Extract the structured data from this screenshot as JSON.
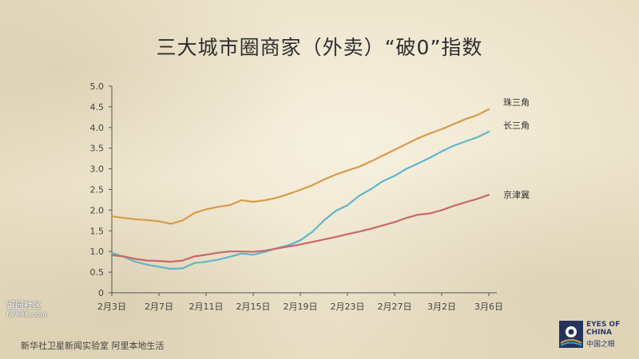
{
  "title": "三大城市圈商家（外卖）“破0”指数",
  "source": "新华社卫星新闻实验室  阿里本地生活",
  "watermark": {
    "text": "留园社区",
    "url": "6PARK.com"
  },
  "logo": {
    "line1": "EYES OF",
    "line2": "CHINA",
    "cn": "中国之眼"
  },
  "colors": {
    "zhu": "#d79b4b",
    "chang": "#5fb7c9",
    "jing": "#c96868"
  },
  "chart_data": {
    "type": "line",
    "title": "三大城市圈商家（外卖）“破0”指数",
    "xlabel": "",
    "ylabel": "",
    "ylim": [
      0,
      5.0
    ],
    "yticks": [
      "0",
      "0.5",
      "1.0",
      "1.5",
      "2.0",
      "2.5",
      "3.0",
      "3.5",
      "4.0",
      "4.5",
      "5.0"
    ],
    "xticks": [
      "2月3日",
      "2月7日",
      "2月11日",
      "2月15日",
      "2月19日",
      "2月23日",
      "2月27日",
      "3月2日",
      "3月6日"
    ],
    "xtick_index": [
      0,
      4,
      8,
      12,
      16,
      20,
      24,
      28,
      32
    ],
    "x": [
      "2月3日",
      "2月4日",
      "2月5日",
      "2月6日",
      "2月7日",
      "2月8日",
      "2月9日",
      "2月10日",
      "2月11日",
      "2月12日",
      "2月13日",
      "2月14日",
      "2月15日",
      "2月16日",
      "2月17日",
      "2月18日",
      "2月19日",
      "2月20日",
      "2月21日",
      "2月22日",
      "2月23日",
      "2月24日",
      "2月25日",
      "2月26日",
      "2月27日",
      "2月28日",
      "2月29日",
      "3月1日",
      "3月2日",
      "3月3日",
      "3月4日",
      "3月5日",
      "3月6日"
    ],
    "series": [
      {
        "name": "珠三角",
        "color": "#d79b4b",
        "values": [
          1.85,
          1.81,
          1.78,
          1.76,
          1.73,
          1.67,
          1.75,
          1.93,
          2.02,
          2.08,
          2.12,
          2.24,
          2.2,
          2.24,
          2.3,
          2.39,
          2.49,
          2.6,
          2.74,
          2.86,
          2.96,
          3.05,
          3.18,
          3.32,
          3.46,
          3.6,
          3.74,
          3.86,
          3.96,
          4.08,
          4.2,
          4.3,
          4.44
        ]
      },
      {
        "name": "长三角",
        "color": "#5fb7c9",
        "values": [
          0.97,
          0.87,
          0.75,
          0.68,
          0.63,
          0.58,
          0.59,
          0.72,
          0.75,
          0.8,
          0.87,
          0.95,
          0.92,
          0.99,
          1.08,
          1.15,
          1.27,
          1.47,
          1.75,
          1.98,
          2.12,
          2.35,
          2.51,
          2.7,
          2.83,
          3.0,
          3.13,
          3.27,
          3.42,
          3.56,
          3.66,
          3.76,
          3.9
        ]
      },
      {
        "name": "京津冀",
        "color": "#c96868",
        "values": [
          0.91,
          0.88,
          0.82,
          0.78,
          0.77,
          0.75,
          0.78,
          0.88,
          0.92,
          0.97,
          1.0,
          1.0,
          0.99,
          1.02,
          1.07,
          1.12,
          1.17,
          1.23,
          1.29,
          1.35,
          1.42,
          1.48,
          1.55,
          1.63,
          1.71,
          1.81,
          1.89,
          1.92,
          2.0,
          2.1,
          2.19,
          2.27,
          2.37
        ]
      }
    ],
    "legend": "right of line ends",
    "grid": false
  }
}
